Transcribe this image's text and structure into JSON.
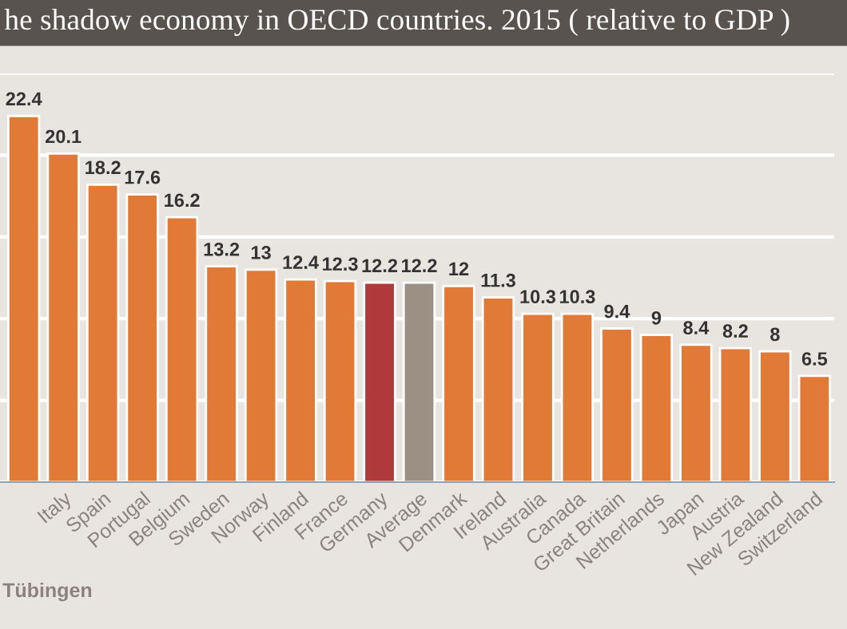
{
  "chart_data": {
    "type": "bar",
    "title": "he shadow economy in OECD countries. 2015 ( relative to GDP )",
    "categories": [
      null,
      "Italy",
      "Spain",
      "Portugal",
      "Belgium",
      "Sweden",
      "Norway",
      "Finland",
      "France",
      "Germany",
      "Average",
      "Denmark",
      "Ireland",
      "Australia",
      "Canada",
      "Great Britain",
      "Netherlands",
      "Japan",
      "Austria",
      "New Zealand",
      "Switzerland"
    ],
    "values": [
      22.4,
      20.1,
      18.2,
      17.6,
      16.2,
      13.2,
      13,
      12.4,
      12.3,
      12.2,
      12.2,
      12,
      11.3,
      10.3,
      10.3,
      9.4,
      9,
      8.4,
      8.2,
      8,
      6.5
    ],
    "colors": [
      "#e07a36",
      "#e07a36",
      "#e07a36",
      "#e07a36",
      "#e07a36",
      "#e07a36",
      "#e07a36",
      "#e07a36",
      "#e07a36",
      "#b0393b",
      "#9b9083",
      "#e07a36",
      "#e07a36",
      "#e07a36",
      "#e07a36",
      "#e07a36",
      "#e07a36",
      "#e07a36",
      "#e07a36",
      "#e07a36",
      "#e07a36"
    ],
    "data_labels": true,
    "ylim": [
      0,
      25
    ],
    "yticks": [
      {
        "value": 0,
        "label": null
      },
      {
        "value": 5,
        "label": null
      },
      {
        "value": 10,
        "label": null
      },
      {
        "value": 15,
        "label": null
      },
      {
        "value": 20,
        "label": null
      },
      {
        "value": 25,
        "label": null
      }
    ],
    "grid": "y",
    "tick_labels": "x",
    "annotations": [
      "Tübingen"
    ]
  }
}
